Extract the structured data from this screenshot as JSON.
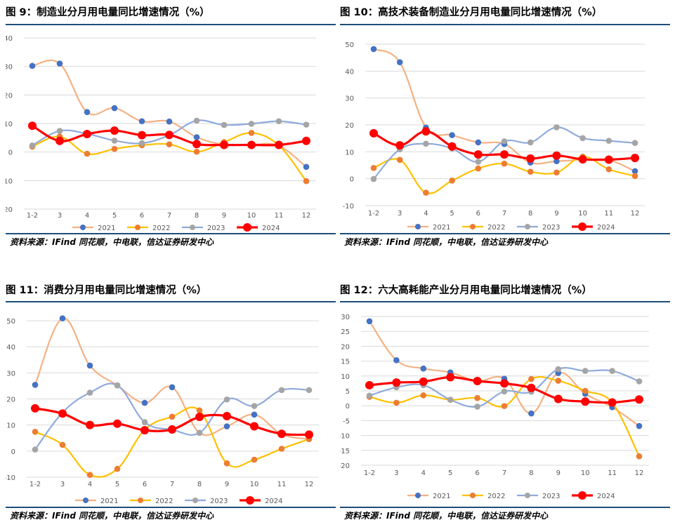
{
  "colors": {
    "2021": "#f4b183",
    "2022": "#ffc000",
    "2023": "#8faadc",
    "2024": "#ff0000",
    "m2021": "#4472c4",
    "m2022": "#ed7d31",
    "m2023": "#a5a5a5",
    "m2024": "#ff0000"
  },
  "panels": [
    {
      "title": "图 9：制造业分月用电量同比增速情况（%）",
      "source": "资料来源：IFind 同花顺，中电联，信达证券研发中心",
      "chart_data": {
        "type": "line",
        "title": "制造业分月用电量同比增速情况（%）",
        "categories": [
          "1-2",
          "3",
          "4",
          "5",
          "6",
          "7",
          "8",
          "9",
          "10",
          "11",
          "12"
        ],
        "ylim": [
          -20,
          40
        ],
        "yticks": [
          -20,
          -10,
          0,
          10,
          20,
          30,
          40
        ],
        "series": [
          {
            "name": "2021",
            "values": [
              30.2,
              31.0,
              14.0,
              15.4,
              10.8,
              10.7,
              5.2,
              2.6,
              2.6,
              2.2,
              -5.2
            ]
          },
          {
            "name": "2022",
            "values": [
              1.9,
              5.4,
              -0.6,
              1.1,
              2.4,
              2.7,
              0.1,
              3.5,
              6.7,
              2.3,
              -10.2
            ]
          },
          {
            "name": "2023",
            "values": [
              2.3,
              7.4,
              6.4,
              4.0,
              3.1,
              5.9,
              11.0,
              9.5,
              9.9,
              10.8,
              9.6
            ]
          },
          {
            "name": "2024",
            "values": [
              9.2,
              3.9,
              6.3,
              7.5,
              5.9,
              6.0,
              2.8,
              2.5,
              2.5,
              2.5,
              3.9
            ]
          }
        ]
      }
    },
    {
      "title": "图 10：高技术装备制造业分月用电量同比增速情况（%）",
      "source": "资料来源：IFind 同花顺，中电联，信达证券研发中心",
      "chart_data": {
        "type": "line",
        "title": "高技术装备制造业分月用电量同比增速情况（%）",
        "categories": [
          "1-2",
          "3",
          "4",
          "5",
          "6",
          "7",
          "8",
          "9",
          "10",
          "11",
          "12"
        ],
        "ylim": [
          -10,
          50
        ],
        "yticks": [
          -10,
          0,
          10,
          20,
          30,
          40,
          50
        ],
        "series": [
          {
            "name": "2021",
            "values": [
              48.2,
              43.3,
              19.0,
              16.2,
              13.5,
              12.9,
              6.0,
              6.5,
              7.0,
              6.9,
              2.8
            ]
          },
          {
            "name": "2022",
            "values": [
              4.0,
              7.0,
              -5.2,
              -0.7,
              3.8,
              5.6,
              2.6,
              2.3,
              8.2,
              3.5,
              1.0
            ]
          },
          {
            "name": "2023",
            "values": [
              -0.1,
              10.9,
              13.0,
              11.2,
              6.3,
              13.9,
              13.5,
              19.1,
              15.1,
              14.1,
              13.3
            ]
          },
          {
            "name": "2024",
            "values": [
              16.9,
              12.4,
              17.6,
              12.0,
              9.0,
              9.0,
              7.5,
              8.6,
              7.2,
              7.1,
              7.7
            ]
          }
        ]
      }
    },
    {
      "title": "图 11：消费分月用电量同比增速情况（%）",
      "source": "资料来源：IFind 同花顺，中电联，信达证券研发中心",
      "chart_data": {
        "type": "line",
        "title": "消费分月用电量同比增速情况（%）",
        "categories": [
          "1-2",
          "3",
          "4",
          "5",
          "6",
          "7",
          "8",
          "9",
          "10",
          "11",
          "12"
        ],
        "ylim": [
          -10,
          50
        ],
        "yticks": [
          -10,
          0,
          10,
          20,
          30,
          40,
          50
        ],
        "series": [
          {
            "name": "2021",
            "values": [
              25.4,
              50.9,
              32.8,
              25.2,
              18.5,
              24.5,
              7.0,
              9.5,
              14.0,
              6.5,
              4.6
            ]
          },
          {
            "name": "2022",
            "values": [
              7.4,
              2.4,
              -9.1,
              -6.8,
              8.2,
              13.2,
              15.6,
              -4.7,
              -3.3,
              0.9,
              4.6
            ]
          },
          {
            "name": "2023",
            "values": [
              0.6,
              14.8,
              22.4,
              25.2,
              11.1,
              8.2,
              7.0,
              19.8,
              17.3,
              23.4,
              23.4
            ]
          },
          {
            "name": "2024",
            "values": [
              16.4,
              14.4,
              10.0,
              10.5,
              8.0,
              8.3,
              13.1,
              13.4,
              9.5,
              6.6,
              6.3
            ]
          }
        ]
      }
    },
    {
      "title": "图 12：六大高耗能产业分月用电量同比增速情况（%）",
      "source": "资料来源：IFind 同花顺，中电联，信达证券研发中心",
      "chart_data": {
        "type": "line",
        "title": "六大高耗能产业分月用电量同比增速情况（%）",
        "categories": [
          "1-2",
          "3",
          "4",
          "5",
          "6",
          "7",
          "8",
          "9",
          "10",
          "11",
          "12"
        ],
        "ylim": [
          -20,
          30
        ],
        "yticks": [
          -20,
          -15,
          -10,
          -5,
          0,
          5,
          10,
          15,
          20,
          25,
          30
        ],
        "series": [
          {
            "name": "2021",
            "values": [
              28.4,
              15.3,
              12.5,
              11.2,
              8.3,
              9.1,
              -2.6,
              11.0,
              4.0,
              -0.5,
              -6.8
            ]
          },
          {
            "name": "2022",
            "values": [
              3.0,
              1.0,
              3.5,
              2.0,
              2.6,
              -0.1,
              9.0,
              8.4,
              5.0,
              1.0,
              -17.0
            ]
          },
          {
            "name": "2023",
            "values": [
              3.4,
              6.2,
              6.9,
              2.0,
              -0.3,
              4.8,
              4.7,
              12.3,
              11.7,
              11.7,
              8.2
            ]
          },
          {
            "name": "2024",
            "values": [
              6.9,
              7.8,
              8.1,
              9.6,
              8.3,
              7.5,
              6.0,
              2.3,
              1.4,
              1.1,
              2.1
            ]
          }
        ]
      }
    }
  ]
}
